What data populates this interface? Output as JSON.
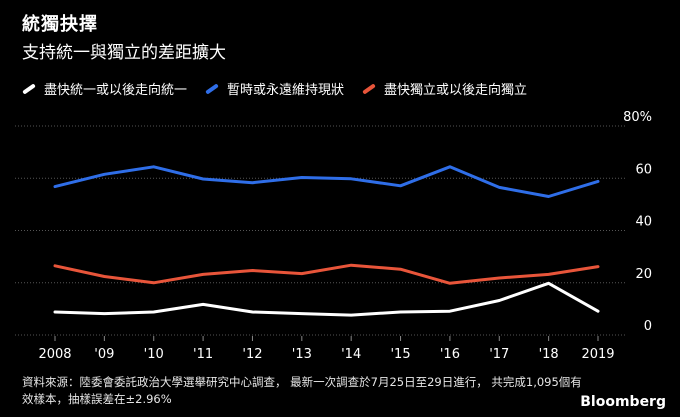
{
  "title": "統獨抉擇",
  "subtitle": "支持統一與獨立的差距擴大",
  "colors": {
    "background": "#000000",
    "unification": "#ffffff",
    "status_quo": "#2f6ee8",
    "independence": "#e8553a",
    "grid": "#555555"
  },
  "legend": [
    {
      "label": "盡快統一或以後走向統一",
      "color": "#ffffff"
    },
    {
      "label": "暫時或永遠維持現狀",
      "color": "#2f6ee8"
    },
    {
      "label": "盡快獨立或以後走向獨立",
      "color": "#e8553a"
    }
  ],
  "chart_data": {
    "type": "line",
    "title": "統獨抉擇",
    "subtitle": "支持統一與獨立的差距擴大",
    "x": [
      "2008",
      "'09",
      "'10",
      "'11",
      "'12",
      "'13",
      "'14",
      "'15",
      "'16",
      "'17",
      "'18",
      "2019"
    ],
    "ylim": [
      0,
      80
    ],
    "yticks": [
      "80%",
      "60",
      "40",
      "20",
      "0"
    ],
    "grid": true,
    "legend_position": "top",
    "series": [
      {
        "name": "盡快統一或以後走向統一",
        "color": "#ffffff",
        "values": [
          8.8,
          8.2,
          8.8,
          11.7,
          8.8,
          8.2,
          7.6,
          8.8,
          9.1,
          13.2,
          19.8,
          9.1
        ]
      },
      {
        "name": "暫時或永遠維持現狀",
        "color": "#2f6ee8",
        "values": [
          56.8,
          61.5,
          64.4,
          59.7,
          58.3,
          60.3,
          59.8,
          57.1,
          64.4,
          56.5,
          53.0,
          58.8
        ]
      },
      {
        "name": "盡快獨立或以後走向獨立",
        "color": "#e8553a",
        "values": [
          26.5,
          22.4,
          20.0,
          23.2,
          24.7,
          23.5,
          26.7,
          25.2,
          19.8,
          21.8,
          23.2,
          26.2
        ]
      }
    ]
  },
  "source": "資料來源：陸委會委託政治大學選舉研究中心調查， 最新一次調查於7月25日至29日進行， 共完成1,095個有效樣本，抽樣誤差在±2.96%",
  "logo": "Bloomberg"
}
